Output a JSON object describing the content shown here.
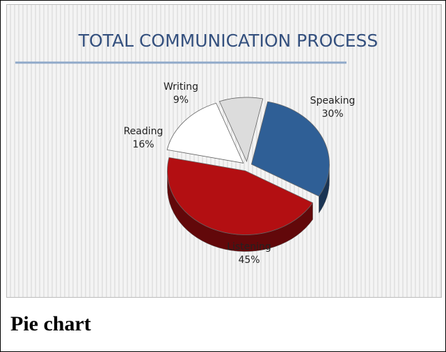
{
  "chart_data": {
    "type": "pie",
    "title": "TOTAL COMMUNICATION PROCESS",
    "categories": [
      "Speaking",
      "Listening",
      "Reading",
      "Writing"
    ],
    "values": [
      30,
      45,
      16,
      9
    ],
    "value_labels": [
      "30%",
      "45%",
      "16%",
      "9%"
    ],
    "colors": [
      "#2f5f96",
      "#b30f12",
      "#ffffff",
      "#dcdcdc"
    ]
  },
  "caption": "Pie chart"
}
